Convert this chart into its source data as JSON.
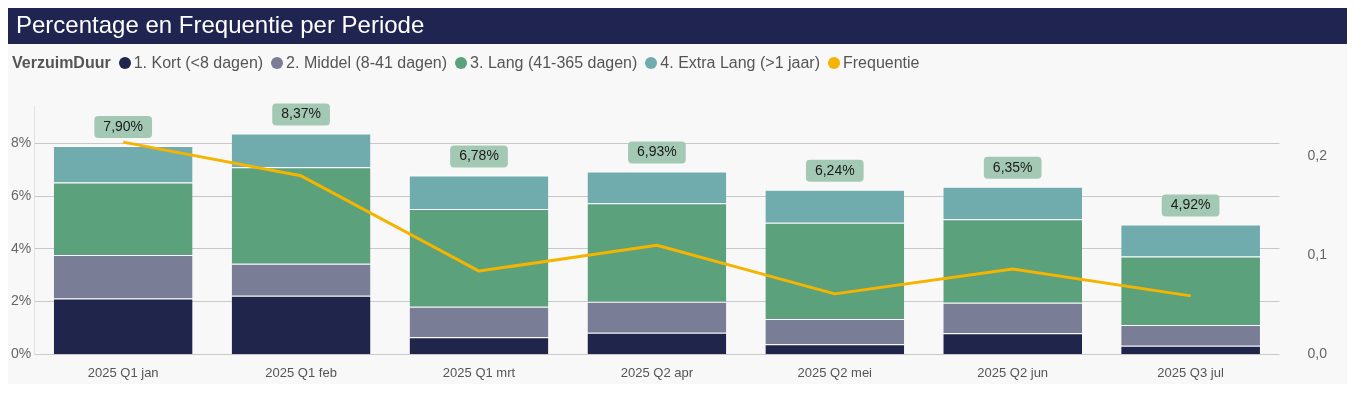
{
  "chart_data": {
    "type": "bar",
    "title": "Percentage en Frequentie per Periode",
    "legend_title": "VerzuimDuur",
    "legend": "top left",
    "stacked": true,
    "grid": "y",
    "marker": "none",
    "categories": [
      "2025 Q1 jan",
      "2025 Q1 feb",
      "2025 Q1 mrt",
      "2025 Q2 apr",
      "2025 Q2 mei",
      "2025 Q2 jun",
      "2025 Q3 jul"
    ],
    "series": [
      {
        "name": "1. Kort (<8 dagen)",
        "color": "#1f254b",
        "values": [
          2.12,
          2.22,
          0.65,
          0.82,
          0.38,
          0.8,
          0.33
        ]
      },
      {
        "name": "2. Middel (8-41 dagen)",
        "color": "#7a7d96",
        "values": [
          1.65,
          1.22,
          1.16,
          1.18,
          0.96,
          1.16,
          0.78
        ]
      },
      {
        "name": "3. Lang (41-365 dagen)",
        "color": "#5ba17b",
        "values": [
          2.75,
          3.65,
          3.7,
          3.73,
          3.65,
          3.16,
          2.6
        ]
      },
      {
        "name": "4. Extra Lang (>1 jaar)",
        "color": "#70abae",
        "values": [
          1.38,
          1.28,
          1.27,
          1.2,
          1.25,
          1.23,
          1.21
        ]
      },
      {
        "name": "Frequentie",
        "type": "line",
        "axis": "y2",
        "color": "#f5b400",
        "values": [
          0.214,
          0.18,
          0.084,
          0.11,
          0.061,
          0.086,
          0.059
        ]
      }
    ],
    "totals": [
      "7,90%",
      "8,37%",
      "6,78%",
      "6,93%",
      "6,24%",
      "6,35%",
      "4,92%"
    ],
    "ylim": [
      0,
      9.4
    ],
    "yticks": [
      {
        "value": 0,
        "label": "0%"
      },
      {
        "value": 2,
        "label": "2%"
      },
      {
        "value": 4,
        "label": "4%"
      },
      {
        "value": 6,
        "label": "6%"
      },
      {
        "value": 8,
        "label": "8%"
      }
    ],
    "y2lim": [
      0,
      0.25
    ],
    "y2ticks": [
      {
        "value": 0,
        "label": "0,0"
      },
      {
        "value": 0.1,
        "label": "0,1"
      },
      {
        "value": 0.2,
        "label": "0,2"
      }
    ]
  }
}
